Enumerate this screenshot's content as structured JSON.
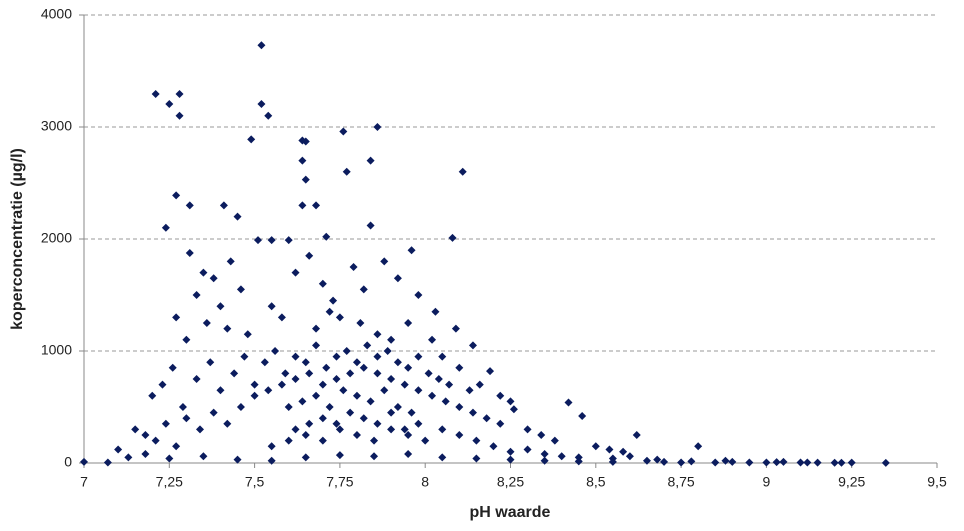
{
  "chart_data": {
    "type": "scatter",
    "x_label": "pH waarde",
    "y_label": "koperconcentratie (µg/l)",
    "color": "#0b1c5e",
    "grid": true,
    "xlim": [
      7,
      9.5
    ],
    "ylim": [
      0,
      4000
    ],
    "xticks": [
      7,
      {
        "value": 7.25,
        "label": "7,25"
      },
      {
        "value": 7.5,
        "label": "7,5"
      },
      {
        "value": 7.75,
        "label": "7,75"
      },
      8,
      {
        "value": 8.25,
        "label": "8,25"
      },
      {
        "value": 8.5,
        "label": "8,5"
      },
      {
        "value": 8.75,
        "label": "8,75"
      },
      9,
      {
        "value": 9.25,
        "label": "9,25"
      },
      {
        "value": 9.5,
        "label": "9,5"
      }
    ],
    "yticks": [
      0,
      1000,
      2000,
      3000,
      4000
    ],
    "x": [
      7.21,
      7.25,
      7.28,
      7.28,
      7.52,
      7.52,
      7.54,
      7.49,
      7.64,
      7.65,
      7.76,
      7.86,
      7.77,
      7.84,
      8.11,
      7.27,
      7.31,
      7.24,
      7.41,
      7.45,
      7.64,
      7.65,
      7.64,
      7.68,
      7.84,
      8.08,
      7.96,
      7.31,
      7.51,
      7.55,
      7.71,
      7.6,
      7.35,
      7.38,
      7.43,
      7.46,
      7.33,
      7.4,
      7.62,
      7.66,
      7.7,
      7.73,
      7.79,
      7.82,
      7.88,
      7.92,
      7.98,
      8.03,
      7.75,
      7.81,
      7.27,
      7.3,
      7.36,
      7.42,
      7.48,
      7.55,
      7.58,
      7.68,
      7.72,
      7.86,
      7.95,
      8.02,
      8.09,
      8.14,
      7.9,
      8.05,
      7.2,
      7.23,
      7.26,
      7.29,
      7.33,
      7.37,
      7.4,
      7.44,
      7.47,
      7.5,
      7.53,
      7.56,
      7.59,
      7.62,
      7.65,
      7.68,
      7.71,
      7.74,
      7.77,
      7.8,
      7.83,
      7.86,
      7.89,
      7.92,
      7.95,
      7.98,
      8.01,
      8.04,
      8.07,
      8.1,
      8.13,
      8.16,
      8.19,
      8.22,
      8.25,
      7.15,
      7.18,
      7.21,
      7.24,
      7.27,
      7.3,
      7.34,
      7.38,
      7.42,
      7.46,
      7.5,
      7.54,
      7.58,
      7.62,
      7.66,
      7.7,
      7.74,
      7.78,
      7.82,
      7.86,
      7.9,
      7.94,
      7.98,
      8.02,
      8.06,
      8.1,
      8.14,
      8.18,
      8.22,
      8.26,
      8.3,
      8.34,
      8.38,
      8.42,
      8.46,
      8.5,
      8.54,
      8.58,
      8.62,
      7.6,
      7.64,
      7.68,
      7.72,
      7.76,
      7.8,
      7.84,
      7.88,
      7.92,
      7.96,
      7.62,
      7.66,
      7.7,
      7.74,
      7.78,
      7.82,
      7.86,
      7.9,
      7.94,
      7.98,
      7.55,
      7.6,
      7.65,
      7.7,
      7.75,
      7.8,
      7.85,
      7.9,
      7.95,
      8.0,
      8.05,
      8.1,
      8.15,
      8.2,
      8.25,
      8.3,
      8.35,
      8.4,
      8.45,
      8.55,
      7.0,
      7.07,
      7.1,
      7.13,
      7.18,
      7.25,
      7.35,
      7.45,
      7.55,
      7.65,
      7.75,
      7.85,
      7.95,
      8.05,
      8.15,
      8.25,
      8.35,
      8.45,
      8.55,
      8.65,
      8.7,
      8.75,
      8.8,
      8.85,
      8.9,
      8.95,
      9.0,
      9.05,
      9.1,
      9.15,
      9.2,
      9.25,
      9.35,
      8.6,
      8.68,
      8.78,
      8.88,
      9.03,
      9.12,
      9.22
    ],
    "values": [
      3295,
      3205,
      3295,
      3100,
      3730,
      3205,
      3100,
      2890,
      2880,
      2870,
      2960,
      3000,
      2600,
      2700,
      2600,
      2390,
      2300,
      2100,
      2300,
      2200,
      2700,
      2530,
      2300,
      2300,
      2120,
      2010,
      1900,
      1875,
      1990,
      1990,
      2020,
      1990,
      1700,
      1650,
      1800,
      1550,
      1500,
      1400,
      1700,
      1850,
      1600,
      1450,
      1750,
      1550,
      1800,
      1650,
      1500,
      1350,
      1300,
      1250,
      1300,
      1100,
      1250,
      1200,
      1150,
      1400,
      1300,
      1200,
      1350,
      1150,
      1250,
      1100,
      1200,
      1050,
      1100,
      950,
      600,
      700,
      850,
      500,
      750,
      900,
      650,
      800,
      950,
      700,
      900,
      1000,
      800,
      950,
      900,
      1050,
      850,
      950,
      1000,
      900,
      1050,
      950,
      1000,
      900,
      850,
      950,
      800,
      750,
      700,
      850,
      650,
      700,
      820,
      600,
      550,
      300,
      250,
      200,
      350,
      150,
      400,
      300,
      450,
      350,
      500,
      600,
      650,
      700,
      750,
      800,
      700,
      750,
      800,
      850,
      800,
      750,
      700,
      650,
      600,
      550,
      500,
      450,
      400,
      350,
      480,
      300,
      250,
      200,
      540,
      420,
      150,
      120,
      100,
      250,
      500,
      550,
      600,
      500,
      650,
      600,
      550,
      650,
      500,
      450,
      300,
      350,
      400,
      350,
      450,
      400,
      350,
      450,
      300,
      350,
      150,
      200,
      250,
      200,
      300,
      250,
      200,
      300,
      250,
      200,
      300,
      250,
      200,
      150,
      100,
      120,
      80,
      60,
      50,
      40,
      10,
      5,
      120,
      50,
      80,
      40,
      60,
      30,
      20,
      50,
      70,
      60,
      80,
      50,
      40,
      30,
      20,
      15,
      10,
      20,
      10,
      5,
      150,
      5,
      10,
      5,
      5,
      10,
      5,
      3,
      2,
      3,
      1,
      60,
      30,
      15,
      20,
      8,
      4,
      2
    ]
  }
}
